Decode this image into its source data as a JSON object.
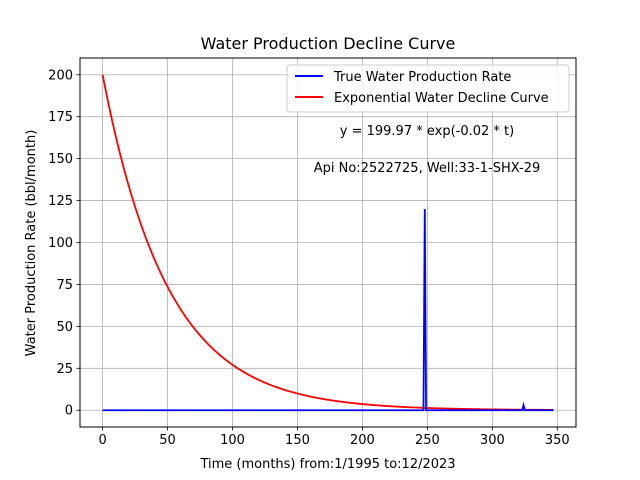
{
  "chart_data": {
    "type": "line",
    "title": "Water Production Decline Curve",
    "xlabel": "Time (months) from:1/1995 to:12/2023",
    "ylabel": "Water Production Rate (bbl/month)",
    "xlim": [
      -17.4,
      364.4
    ],
    "ylim": [
      -10,
      210
    ],
    "xticks": [
      0,
      50,
      100,
      150,
      200,
      250,
      300,
      350
    ],
    "yticks": [
      0,
      25,
      50,
      75,
      100,
      125,
      150,
      175,
      200
    ],
    "grid": true,
    "legend": "top-right",
    "annotations": [
      "y = 199.97 * exp(-0.02 * t)",
      "Api No:2522725, Well:33-1-SHX-29"
    ],
    "series": [
      {
        "name": "True Water Production Rate",
        "color": "#0000ff",
        "kind": "observed",
        "points": [
          [
            0,
            0
          ],
          [
            247,
            0
          ],
          [
            248,
            120
          ],
          [
            249,
            0
          ],
          [
            323,
            0
          ],
          [
            324,
            3
          ],
          [
            325,
            0
          ],
          [
            347,
            0
          ]
        ]
      },
      {
        "name": "Exponential Water Decline Curve",
        "color": "#ff0000",
        "kind": "fit",
        "model": {
          "a": 199.97,
          "b": 0.02,
          "t_start": 0,
          "t_end": 347
        }
      }
    ]
  }
}
